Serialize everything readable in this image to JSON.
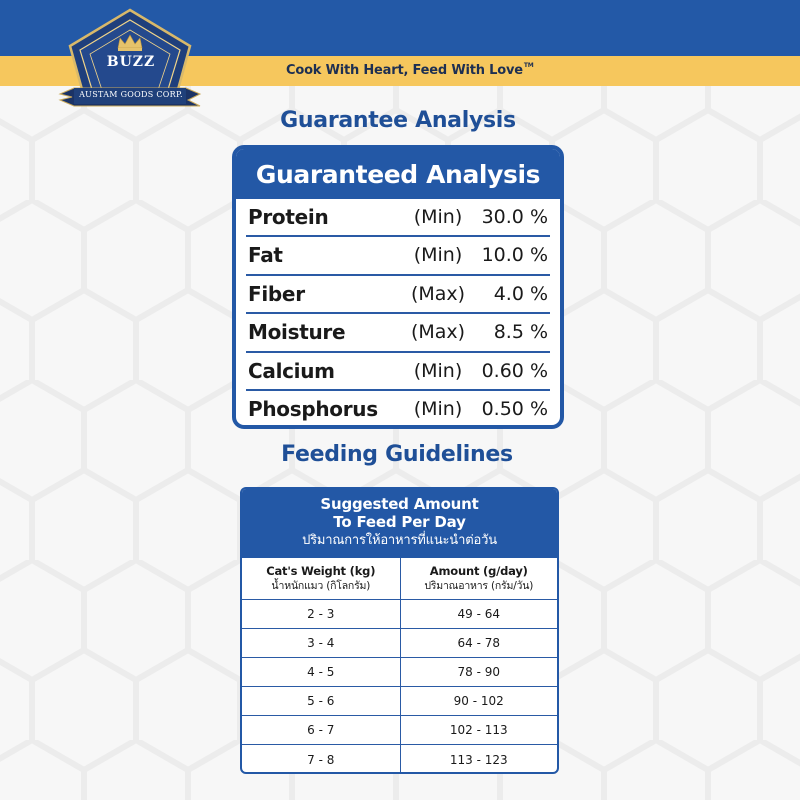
{
  "brand": {
    "logo_name": "BUZZ",
    "logo_ribbon": "AUSTAM GOODS CORP.",
    "tagline": "Cook With Heart, Feed With Love",
    "tagline_mark": "TM"
  },
  "colors": {
    "brand_blue": "#2359a7",
    "tagline_yellow": "#f6c75d",
    "heading_blue": "#1f4f97"
  },
  "guarantee_section": {
    "heading": "Guarantee Analysis",
    "card_title": "Guaranteed Analysis",
    "rows": [
      {
        "name": "Protein",
        "qualifier": "(Min)",
        "value": "30.0 %"
      },
      {
        "name": "Fat",
        "qualifier": "(Min)",
        "value": "10.0 %"
      },
      {
        "name": "Fiber",
        "qualifier": "(Max)",
        "value": "4.0 %"
      },
      {
        "name": "Moisture",
        "qualifier": "(Max)",
        "value": "8.5 %"
      },
      {
        "name": "Calcium",
        "qualifier": "(Min)",
        "value": "0.60 %"
      },
      {
        "name": "Phosphorus",
        "qualifier": "(Min)",
        "value": "0.50 %"
      }
    ]
  },
  "feeding_section": {
    "heading": "Feeding Guidelines",
    "table_title_line1": "Suggested Amount",
    "table_title_line2": "To Feed Per Day",
    "table_title_thai": "ปริมาณการให้อาหารที่แนะนำต่อวัน",
    "columns": [
      {
        "label": "Cat's Weight (kg)",
        "sub": "น้ำหนักแมว (กิโลกรัม)"
      },
      {
        "label": "Amount (g/day)",
        "sub": "ปริมาณอาหาร (กรัม/วัน)"
      }
    ],
    "rows": [
      {
        "weight": "2 - 3",
        "amount": "49 - 64"
      },
      {
        "weight": "3 - 4",
        "amount": "64 - 78"
      },
      {
        "weight": "4 - 5",
        "amount": "78 - 90"
      },
      {
        "weight": "5 - 6",
        "amount": "90 - 102"
      },
      {
        "weight": "6 - 7",
        "amount": "102 - 113"
      },
      {
        "weight": "7 - 8",
        "amount": "113 - 123"
      }
    ]
  }
}
